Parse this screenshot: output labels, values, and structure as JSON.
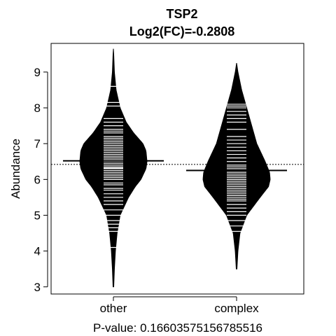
{
  "chart_data": {
    "type": "beanplot",
    "title": "TSP2",
    "subtitle": "Log2(FC)=-0.2808",
    "xlabel": "P-value: 0.16603575156785516",
    "ylabel": "Abundance",
    "categories": [
      "other",
      "complex"
    ],
    "ylim": [
      2.8,
      9.8
    ],
    "yticks": [
      3,
      4,
      5,
      6,
      7,
      8,
      9
    ],
    "overall_mean": 6.42,
    "grid": false,
    "legend": "none",
    "series": [
      {
        "group": "other",
        "mean": 6.52,
        "median": 6.5,
        "range": [
          3.0,
          9.65
        ],
        "density_profile": [
          [
            3.0,
            0.01
          ],
          [
            3.5,
            0.03
          ],
          [
            4.0,
            0.06
          ],
          [
            4.5,
            0.11
          ],
          [
            5.0,
            0.2
          ],
          [
            5.5,
            0.45
          ],
          [
            5.8,
            0.65
          ],
          [
            6.0,
            0.82
          ],
          [
            6.3,
            0.97
          ],
          [
            6.5,
            1.0
          ],
          [
            6.8,
            0.97
          ],
          [
            7.0,
            0.88
          ],
          [
            7.3,
            0.6
          ],
          [
            7.6,
            0.38
          ],
          [
            8.0,
            0.2
          ],
          [
            8.5,
            0.08
          ],
          [
            9.0,
            0.03
          ],
          [
            9.5,
            0.01
          ],
          [
            9.65,
            0.0
          ]
        ],
        "observations": [
          4.1,
          4.55,
          4.65,
          4.75,
          4.85,
          5.0,
          5.15,
          5.3,
          5.4,
          5.5,
          5.6,
          5.7,
          5.75,
          5.85,
          5.9,
          6.0,
          6.05,
          6.1,
          6.15,
          6.2,
          6.25,
          6.3,
          6.32,
          6.35,
          6.4,
          6.45,
          6.5,
          6.52,
          6.55,
          6.6,
          6.65,
          6.7,
          6.75,
          6.8,
          6.85,
          6.9,
          6.95,
          7.0,
          7.05,
          7.1,
          7.15,
          7.2,
          7.3,
          7.35,
          7.4,
          7.5,
          7.6,
          7.7,
          8.05,
          8.15,
          8.6
        ]
      },
      {
        "group": "complex",
        "mean": 6.25,
        "median": 6.3,
        "range": [
          3.5,
          9.25
        ],
        "density_profile": [
          [
            3.5,
            0.01
          ],
          [
            4.0,
            0.04
          ],
          [
            4.5,
            0.1
          ],
          [
            5.0,
            0.3
          ],
          [
            5.5,
            0.7
          ],
          [
            5.8,
            0.95
          ],
          [
            6.0,
            1.0
          ],
          [
            6.2,
            0.98
          ],
          [
            6.5,
            0.85
          ],
          [
            7.0,
            0.6
          ],
          [
            7.5,
            0.45
          ],
          [
            8.0,
            0.3
          ],
          [
            8.5,
            0.15
          ],
          [
            9.0,
            0.04
          ],
          [
            9.25,
            0.0
          ]
        ],
        "observations": [
          4.55,
          4.7,
          4.85,
          5.0,
          5.1,
          5.2,
          5.3,
          5.4,
          5.45,
          5.5,
          5.55,
          5.6,
          5.65,
          5.7,
          5.75,
          5.8,
          5.85,
          5.9,
          5.95,
          6.0,
          6.05,
          6.1,
          6.15,
          6.2,
          6.25,
          6.3,
          6.35,
          6.4,
          6.5,
          6.6,
          6.7,
          6.8,
          6.9,
          7.0,
          7.1,
          7.2,
          7.4,
          7.6,
          7.7,
          7.8,
          7.9,
          8.0,
          8.05,
          8.1
        ]
      }
    ]
  },
  "colors": {
    "bean_fill": "#000000",
    "observation_line": "#ffffff",
    "axis": "#000000",
    "background": "#ffffff"
  }
}
